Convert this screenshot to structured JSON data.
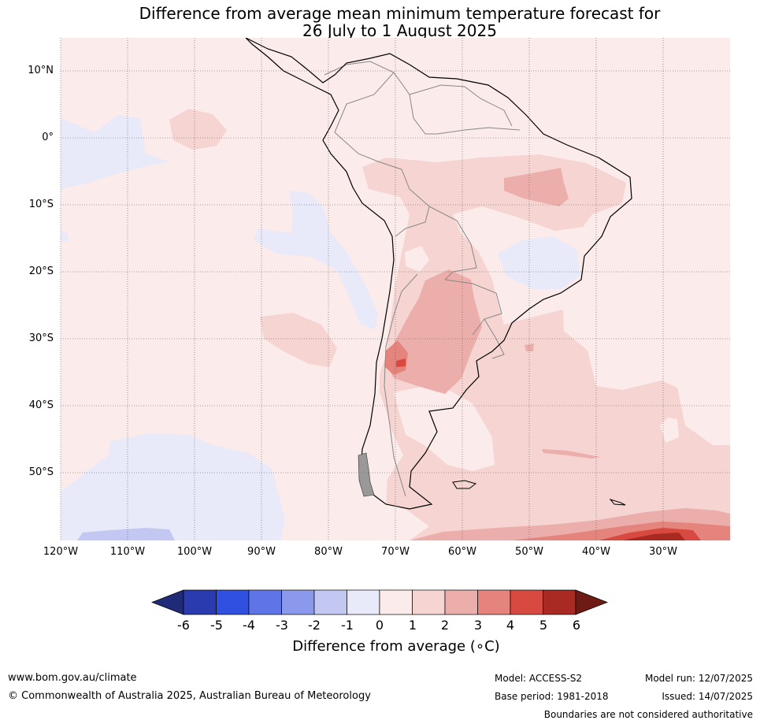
{
  "title": {
    "line1": "Difference from average mean minimum temperature forecast for",
    "line2": "26 July to 1 August 2025"
  },
  "map": {
    "lat_labels": [
      "10°N",
      "0°",
      "10°S",
      "20°S",
      "30°S",
      "40°S",
      "50°S"
    ],
    "lon_labels": [
      "120°W",
      "110°W",
      "100°W",
      "90°W",
      "80°W",
      "70°W",
      "60°W",
      "50°W",
      "40°W",
      "30°W"
    ],
    "background_color": "#fbebea",
    "grid": "dotted"
  },
  "colorbar": {
    "ticks": [
      "-6",
      "-5",
      "-4",
      "-3",
      "-2",
      "-1",
      "0",
      "1",
      "2",
      "3",
      "4",
      "5",
      "6"
    ],
    "colors": [
      "#1f2a78",
      "#2a3bb0",
      "#3050e0",
      "#5f74e6",
      "#8a99ec",
      "#c2c8f2",
      "#e8eafa",
      "#fbebea",
      "#f5d4d2",
      "#ecaeaa",
      "#e5837d",
      "#d84a3f",
      "#a82a22",
      "#6e1b16"
    ],
    "label": "Difference from average (∘C)"
  },
  "footer": {
    "website": "www.bom.gov.au/climate",
    "copyright": "© Commonwealth of Australia 2025, Australian Bureau of Meteorology",
    "model": "Model: ACCESS-S2",
    "base_period": "Base period: 1981-2018",
    "model_run": "Model run: 12/07/2025",
    "issued": "Issued: 14/07/2025",
    "disclaimer": "Boundaries are not considered authoritative"
  }
}
